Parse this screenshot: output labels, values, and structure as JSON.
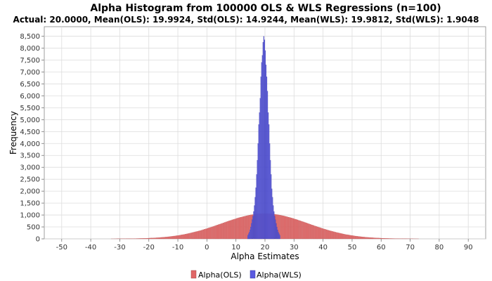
{
  "chart_data": {
    "type": "bar",
    "title": "Alpha Histogram from 100000 OLS & WLS Regressions (n=100)",
    "subtitle": "Actual: 20.0000, Mean(OLS): 19.9924, Std(OLS): 14.9244, Mean(WLS): 19.9812, Std(WLS): 1.9048",
    "xlabel": "Alpha Estimates",
    "ylabel": "Frequency",
    "xlim": [
      -56,
      96
    ],
    "ylim": [
      0,
      8900
    ],
    "x_ticks": [
      -50,
      -40,
      -30,
      -20,
      -10,
      0,
      10,
      20,
      30,
      40,
      50,
      60,
      70,
      80,
      90
    ],
    "y_ticks": [
      0,
      500,
      1000,
      1500,
      2000,
      2500,
      3000,
      3500,
      4000,
      4500,
      5000,
      5500,
      6000,
      6500,
      7000,
      7500,
      8000,
      8500
    ],
    "y_tick_labels": [
      "0",
      "500",
      "1,000",
      "1,500",
      "2,000",
      "2,500",
      "3,000",
      "3,500",
      "4,000",
      "4,500",
      "5,000",
      "5,500",
      "6,000",
      "6,500",
      "7,000",
      "7,500",
      "8,000",
      "8,500"
    ],
    "grid": true,
    "legend_position": "bottom",
    "series": [
      {
        "name": "Alpha(OLS)",
        "color": "#e06666",
        "bin_start": -50,
        "bin_width": 0.5,
        "gaussian": {
          "mean": 19.9924,
          "std": 14.9244,
          "peak": 1060
        }
      },
      {
        "name": "Alpha(WLS)",
        "color": "#5b5be0",
        "bin_width": 0.25,
        "x": [
          14.0,
          14.25,
          14.5,
          14.75,
          15.0,
          15.25,
          15.5,
          15.75,
          16.0,
          16.25,
          16.5,
          16.75,
          17.0,
          17.25,
          17.5,
          17.75,
          18.0,
          18.25,
          18.5,
          18.75,
          19.0,
          19.25,
          19.5,
          19.75,
          20.0,
          20.25,
          20.5,
          20.75,
          21.0,
          21.25,
          21.5,
          21.75,
          22.0,
          22.25,
          22.5,
          22.75,
          23.0,
          23.25,
          23.5,
          23.75,
          24.0,
          24.25,
          24.5,
          24.75,
          25.0
        ],
        "values": [
          150,
          210,
          280,
          380,
          500,
          650,
          800,
          950,
          1150,
          1400,
          1750,
          2150,
          2700,
          3300,
          4000,
          4800,
          5300,
          5900,
          6800,
          7400,
          7700,
          8250,
          8500,
          8350,
          7900,
          7300,
          6800,
          6200,
          5300,
          4800,
          4000,
          3300,
          2700,
          2100,
          1750,
          1400,
          1150,
          950,
          800,
          650,
          500,
          380,
          280,
          210,
          150
        ]
      }
    ]
  }
}
